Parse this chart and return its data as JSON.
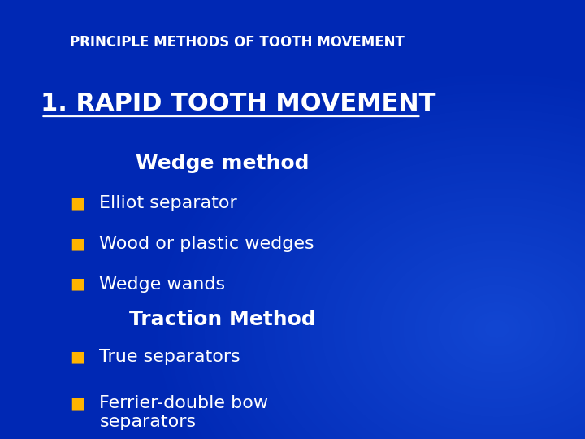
{
  "bg_color": "#0033cc",
  "title_small": "PRINCIPLE METHODS OF TOOTH MOVEMENT",
  "title_small_color": "#ffffff",
  "title_small_fontsize": 12,
  "heading": "1. RAPID TOOTH MOVEMENT",
  "heading_color": "#ffffff",
  "heading_fontsize": 22,
  "subheading1": "Wedge method",
  "subheading1_color": "#ffffff",
  "subheading1_fontsize": 18,
  "bullet_color": "#FFB300",
  "bullet_items1": [
    "Elliot separator",
    "Wood or plastic wedges",
    "Wedge wands"
  ],
  "bullet_fontsize": 16,
  "bullet_text_color": "#ffffff",
  "subheading2": "Traction Method",
  "subheading2_color": "#ffffff",
  "subheading2_fontsize": 18,
  "bullet_items2": [
    "True separators",
    "Ferrier-double bow\nseparators"
  ]
}
